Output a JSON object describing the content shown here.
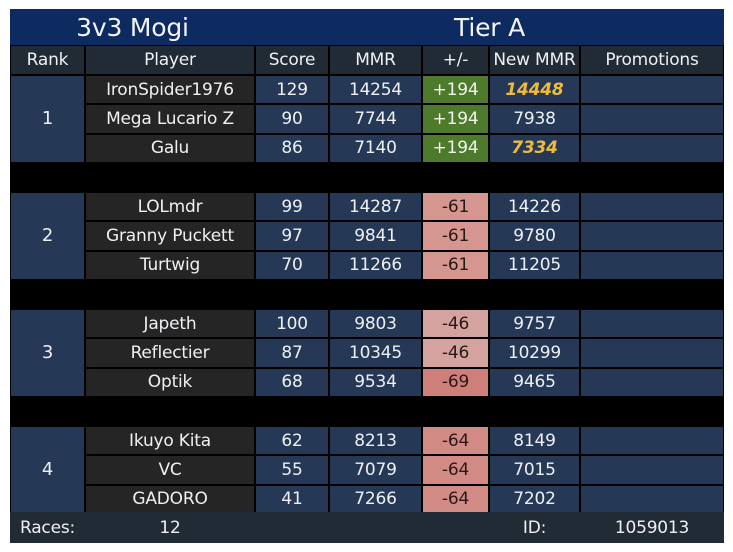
{
  "title": {
    "format": "3v3 Mogi",
    "tier": "Tier A"
  },
  "headers": {
    "rank": "Rank",
    "player": "Player",
    "score": "Score",
    "mmr": "MMR",
    "delta": "+/-",
    "new_mmr": "New MMR",
    "promotions": "Promotions"
  },
  "teams": [
    {
      "rank": "1",
      "players": [
        {
          "name": "IronSpider1976",
          "score": "129",
          "mmr": "14254",
          "delta": "+194",
          "new_mmr": "14448",
          "promoted": true,
          "delta_color": "#4e7a2c"
        },
        {
          "name": "Mega Lucario Z",
          "score": "90",
          "mmr": "7744",
          "delta": "+194",
          "new_mmr": "7938",
          "promoted": false,
          "delta_color": "#4e7a2c"
        },
        {
          "name": "Galu",
          "score": "86",
          "mmr": "7140",
          "delta": "+194",
          "new_mmr": "7334",
          "promoted": true,
          "delta_color": "#4e7a2c"
        }
      ]
    },
    {
      "rank": "2",
      "players": [
        {
          "name": "LOLmdr",
          "score": "99",
          "mmr": "14287",
          "delta": "-61",
          "new_mmr": "14226",
          "promoted": false,
          "delta_color": "#d59690"
        },
        {
          "name": "Granny Puckett",
          "score": "97",
          "mmr": "9841",
          "delta": "-61",
          "new_mmr": "9780",
          "promoted": false,
          "delta_color": "#d59690"
        },
        {
          "name": "Turtwig",
          "score": "70",
          "mmr": "11266",
          "delta": "-61",
          "new_mmr": "11205",
          "promoted": false,
          "delta_color": "#d59690"
        }
      ]
    },
    {
      "rank": "3",
      "players": [
        {
          "name": "Japeth",
          "score": "100",
          "mmr": "9803",
          "delta": "-46",
          "new_mmr": "9757",
          "promoted": false,
          "delta_color": "#d4a3a0"
        },
        {
          "name": "Reflectier",
          "score": "87",
          "mmr": "10345",
          "delta": "-46",
          "new_mmr": "10299",
          "promoted": false,
          "delta_color": "#d4a3a0"
        },
        {
          "name": "Optik",
          "score": "68",
          "mmr": "9534",
          "delta": "-69",
          "new_mmr": "9465",
          "promoted": false,
          "delta_color": "#cf7f7a"
        }
      ]
    },
    {
      "rank": "4",
      "players": [
        {
          "name": "Ikuyo Kita",
          "score": "62",
          "mmr": "8213",
          "delta": "-64",
          "new_mmr": "8149",
          "promoted": false,
          "delta_color": "#d28a85"
        },
        {
          "name": "VC",
          "score": "55",
          "mmr": "7079",
          "delta": "-64",
          "new_mmr": "7015",
          "promoted": false,
          "delta_color": "#d28a85"
        },
        {
          "name": "GADORO",
          "score": "41",
          "mmr": "7266",
          "delta": "-64",
          "new_mmr": "7202",
          "promoted": false,
          "delta_color": "#d28a85"
        }
      ]
    }
  ],
  "footer": {
    "races_label": "Races:",
    "races_value": "12",
    "id_label": "ID:",
    "id_value": "1059013"
  },
  "colors": {
    "title_bg": "#0e2b61",
    "header_bg": "#212b36",
    "rank_bg": "#253957",
    "player_bg": "#252525",
    "promo_text": "#f0bb3d"
  }
}
